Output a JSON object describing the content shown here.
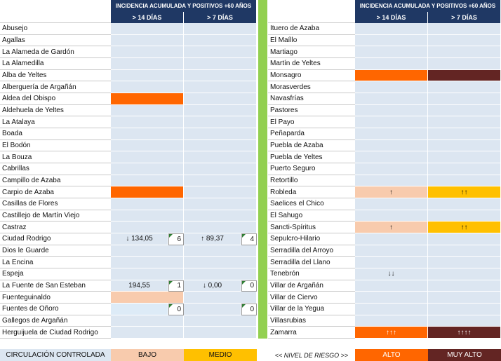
{
  "header": {
    "title_left": "INCIDENCIA ACUMULADA Y POSITIVOS +60 AÑOS",
    "title_right": "INCIDENCIA ACUMULADA Y POSITIVOS +60 AÑOS",
    "col14": "> 14 DÍAS",
    "col7": "> 7 DÍAS",
    "col14_right": "> 14 DÍAS",
    "col7_right": "> 7 DÍAS",
    "color": "#1f3864"
  },
  "cell_color": "#dce6f1",
  "separator_color": "#92d050",
  "left": {
    "rows": [
      {
        "name": "Abusejo"
      },
      {
        "name": "Agallas"
      },
      {
        "name": "La Alameda de Gardón"
      },
      {
        "name": "La Alamedilla"
      },
      {
        "name": "Alba de Yeltes"
      },
      {
        "name": "Alberguería de Argañán"
      },
      {
        "name": "Aldea del Obispo",
        "c14": "#ff6600"
      },
      {
        "name": "Aldehuela de Yeltes"
      },
      {
        "name": "La Atalaya"
      },
      {
        "name": "Boada"
      },
      {
        "name": "El Bodón"
      },
      {
        "name": "La Bouza"
      },
      {
        "name": "Cabrillas"
      },
      {
        "name": "Campillo de Azaba"
      },
      {
        "name": "Carpio de Azaba",
        "c14": "#ff6600"
      },
      {
        "name": "Casillas de Flores"
      },
      {
        "name": "Castillejo de Martín Viejo"
      },
      {
        "name": "Castraz"
      },
      {
        "name": "Ciudad Rodrigo",
        "t14": "↓ 134,05",
        "n14": 6,
        "t7": "↑ 89,37",
        "n7": 4
      },
      {
        "name": "Dios le Guarde"
      },
      {
        "name": "La Encina"
      },
      {
        "name": "Espeja"
      },
      {
        "name": "La Fuente de San Esteban",
        "t14": "194,55",
        "n14": 1,
        "t7": "↓ 0,00",
        "n7": 0
      },
      {
        "name": "Fuenteguinaldo",
        "c14": "#f8cbad"
      },
      {
        "name": "Fuentes de Oñoro",
        "n14": 0,
        "n7": 0,
        "c14": "#ddebf7"
      },
      {
        "name": "Gallegos de Argañán"
      },
      {
        "name": "Herguijuela de Ciudad Rodrigo"
      }
    ]
  },
  "right": {
    "rows": [
      {
        "name": "Ituero de Azaba"
      },
      {
        "name": "El Maíllo"
      },
      {
        "name": "Martiago"
      },
      {
        "name": "Martín de Yeltes"
      },
      {
        "name": "Monsagro",
        "c14": "#ff6600",
        "c7": "#632523"
      },
      {
        "name": "Morasverdes"
      },
      {
        "name": "Navasfrías"
      },
      {
        "name": "Pastores"
      },
      {
        "name": "El Payo"
      },
      {
        "name": "Peñaparda"
      },
      {
        "name": "Puebla de Azaba"
      },
      {
        "name": "Puebla de Yeltes"
      },
      {
        "name": "Puerto Seguro"
      },
      {
        "name": "Retortillo"
      },
      {
        "name": "Robleda",
        "t14": "↑",
        "t7": "↑↑",
        "c14": "#f8cbad",
        "c7": "#ffc000"
      },
      {
        "name": "Saelices el Chico"
      },
      {
        "name": "El Sahugo"
      },
      {
        "name": "Sancti-Spíritus",
        "t14": "↑",
        "t7": "↑↑",
        "c14": "#f8cbad",
        "c7": "#ffc000"
      },
      {
        "name": "Sepulcro-Hilario"
      },
      {
        "name": "Serradilla del Arroyo"
      },
      {
        "name": "Serradilla del Llano"
      },
      {
        "name": "Tenebrón",
        "t14": "↓↓"
      },
      {
        "name": "Villar de Argañán"
      },
      {
        "name": "Villar de Ciervo"
      },
      {
        "name": "Villar de la Yegua"
      },
      {
        "name": "Villasrubias"
      },
      {
        "name": "Zamarra",
        "t14": "↑↑↑",
        "t7": "↑↑↑↑",
        "c14": "#ff6600",
        "c7": "#632523"
      }
    ]
  },
  "legend": {
    "items": [
      {
        "text": "CIRCULACIÓN CONTROLADA",
        "color": "#dce6f1"
      },
      {
        "text": "BAJO",
        "color": "#f8cbad"
      },
      {
        "text": "MEDIO",
        "color": "#ffc000"
      },
      {
        "text": "<< NIVEL DE RIESGO >>",
        "color": "#ffffff"
      },
      {
        "text": "ALTO",
        "color": "#ff6600"
      },
      {
        "text": "MUY ALTO",
        "color": "#632523"
      }
    ]
  }
}
